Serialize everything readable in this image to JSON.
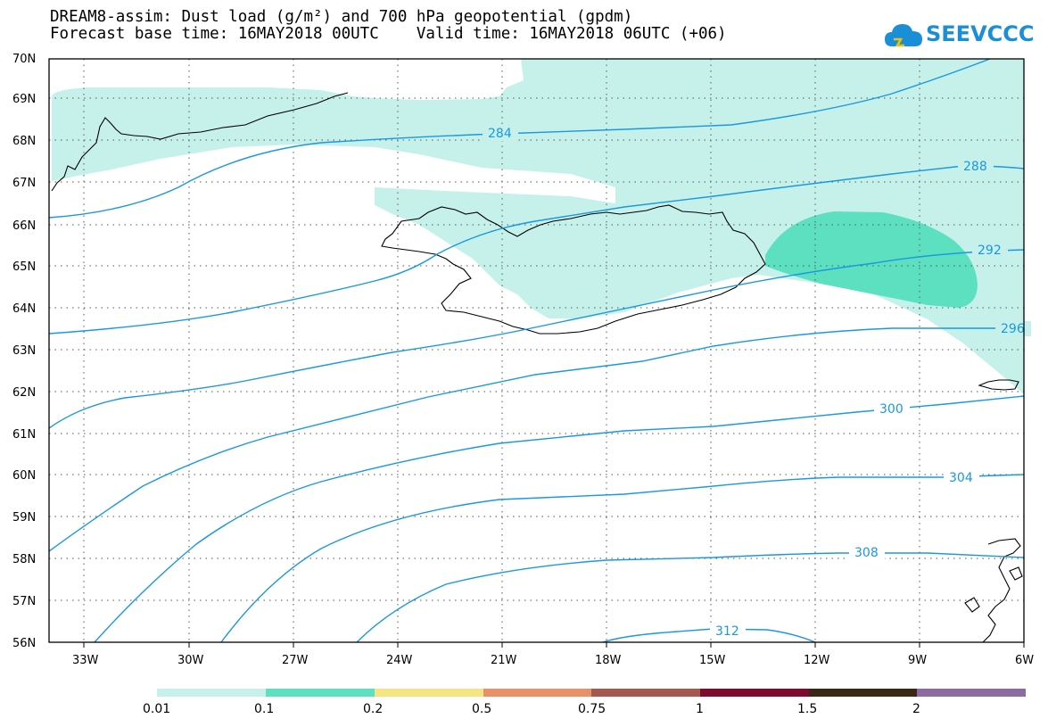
{
  "title": {
    "line1": "DREAM8-assim: Dust load (g/m²) and 700 hPa geopotential (gpdm)",
    "line2": "Forecast base time: 16MAY2018 00UTC    Valid time: 16MAY2018 06UTC (+06)"
  },
  "logo": {
    "text": "SEEVCCC",
    "icon": "cloud-icon",
    "color": "#1a8fd8"
  },
  "map": {
    "lat_labels": [
      "70N",
      "69N",
      "68N",
      "67N",
      "66N",
      "65N",
      "64N",
      "63N",
      "62N",
      "61N",
      "60N",
      "59N",
      "58N",
      "57N",
      "56N"
    ],
    "lon_labels": [
      "33W",
      "30W",
      "27W",
      "24W",
      "21W",
      "18W",
      "15W",
      "12W",
      "9W",
      "6W"
    ],
    "contour_color": "#1a98e0",
    "contour_labels": [
      "284",
      "288",
      "292",
      "296",
      "300",
      "304",
      "308",
      "312"
    ]
  },
  "colorbar": {
    "colors": [
      "#c5f1ea",
      "#5de0bf",
      "#f5e582",
      "#e8906a",
      "#a35a4e",
      "#7e0a2f",
      "#3b2716",
      "#8e6aa3"
    ],
    "labels": [
      "0.01",
      "0.1",
      "0.2",
      "0.5",
      "0.75",
      "1",
      "1.5",
      "2"
    ]
  }
}
